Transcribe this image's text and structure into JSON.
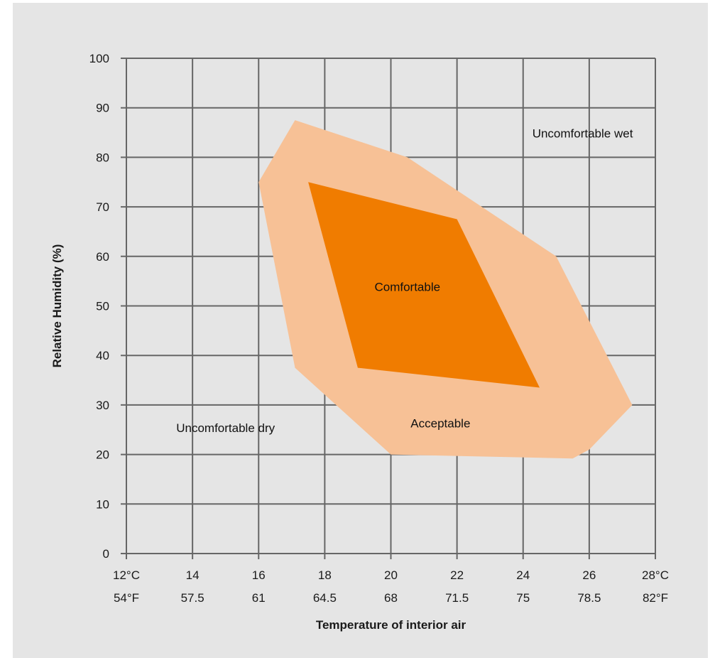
{
  "chart_data": {
    "type": "area",
    "xlabel": "Temperature of interior air",
    "ylabel": "Relative Humidity (%)",
    "xlim": [
      12,
      28
    ],
    "ylim": [
      0,
      100
    ],
    "grid": true,
    "x_ticks": [
      12,
      14,
      16,
      18,
      20,
      22,
      24,
      26,
      28
    ],
    "x_tick_labels_c": [
      "12°C",
      "14",
      "16",
      "18",
      "20",
      "22",
      "24",
      "26",
      "28°C"
    ],
    "x_tick_labels_f": [
      "54°F",
      "57.5",
      "61",
      "64.5",
      "68",
      "71.5",
      "75",
      "78.5",
      "82°F"
    ],
    "y_ticks": [
      0,
      10,
      20,
      30,
      40,
      50,
      60,
      70,
      80,
      90,
      100
    ],
    "y_tick_labels": [
      "0",
      "10",
      "20",
      "30",
      "40",
      "50",
      "60",
      "70",
      "80",
      "90",
      "100"
    ],
    "series": [
      {
        "name": "Acceptable",
        "color": "#f7c196",
        "points": [
          [
            17.1,
            87.5
          ],
          [
            20.5,
            80
          ],
          [
            25,
            60
          ],
          [
            27.3,
            30
          ],
          [
            26,
            21
          ],
          [
            25.5,
            19.2
          ],
          [
            20,
            20
          ],
          [
            17.1,
            37.5
          ],
          [
            16,
            75
          ]
        ]
      },
      {
        "name": "Comfortable",
        "color": "#f07c00",
        "points": [
          [
            17.5,
            75
          ],
          [
            22,
            67.5
          ],
          [
            24.5,
            33.5
          ],
          [
            19,
            37.5
          ]
        ]
      }
    ],
    "annotations": [
      {
        "text": "Uncomfortable wet",
        "x": 25.8,
        "y": 84
      },
      {
        "text": "Comfortable",
        "x": 20.5,
        "y": 53
      },
      {
        "text": "Acceptable",
        "x": 21.5,
        "y": 25.5
      },
      {
        "text": "Uncomfortable dry",
        "x": 15,
        "y": 24.5
      }
    ]
  }
}
